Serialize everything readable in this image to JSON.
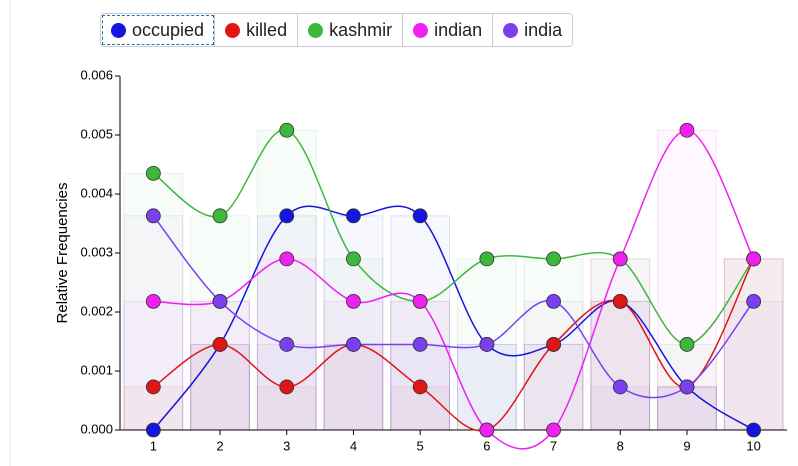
{
  "chart_data": {
    "type": "line",
    "y_label": "Relative Frequencies",
    "categories": [
      "1",
      "2",
      "3",
      "4",
      "5",
      "6",
      "7",
      "8",
      "9",
      "10"
    ],
    "series": [
      {
        "name": "occupied",
        "color": "#1515e0",
        "values": [
          0,
          0.00145,
          0.00363,
          0.00363,
          0.00363,
          0.00145,
          0.00145,
          0.00218,
          0.00073,
          0
        ]
      },
      {
        "name": "killed",
        "color": "#e01515",
        "values": [
          0.00073,
          0.00145,
          0.00073,
          0.00145,
          0.00073,
          0,
          0.00145,
          0.00218,
          0.00073,
          0.0029
        ]
      },
      {
        "name": "kashmir",
        "color": "#3cb83c",
        "values": [
          0.00435,
          0.00363,
          0.00508,
          0.0029,
          0.00218,
          0.0029,
          0.0029,
          0.0029,
          0.00145,
          0.0029
        ]
      },
      {
        "name": "indian",
        "color": "#f020f0",
        "values": [
          0.00218,
          0.00218,
          0.0029,
          0.00218,
          0.00218,
          0,
          0,
          0.0029,
          0.00508,
          0.0029
        ]
      },
      {
        "name": "india",
        "color": "#7a40f0",
        "values": [
          0.00363,
          0.00218,
          0.00145,
          0.00145,
          0.00145,
          0.00145,
          0.00218,
          0.00073,
          0.00073,
          0.00218
        ]
      }
    ],
    "ylim": [
      0,
      0.006
    ],
    "yticks": [
      {
        "value": 0,
        "label": "0.000"
      },
      0.001,
      0.002,
      0.003,
      0.004,
      0.005,
      0.006
    ]
  }
}
